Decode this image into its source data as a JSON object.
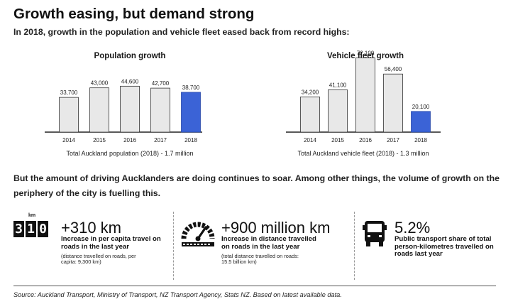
{
  "header": {
    "title": "Growth easing, but demand strong",
    "subtitle": "In 2018, growth in the population and vehicle fleet eased back from record highs:"
  },
  "chart_data": [
    {
      "type": "bar",
      "title": "Population growth",
      "categories": [
        "2014",
        "2015",
        "2016",
        "2017",
        "2018"
      ],
      "values": [
        33700,
        43000,
        44600,
        42700,
        38700
      ],
      "value_labels": [
        "33,700",
        "43,000",
        "44,600",
        "42,700",
        "38,700"
      ],
      "highlight_index": 4,
      "ylim": [
        0,
        80000
      ],
      "caption": "Total Auckland population (2018) - 1.7 million",
      "colors": {
        "bar": "#e8e8e8",
        "highlight": "#3b63d6"
      }
    },
    {
      "type": "bar",
      "title": "Vehicle fleet growth",
      "categories": [
        "2014",
        "2015",
        "2016",
        "2017",
        "2018"
      ],
      "values": [
        34200,
        41100,
        72100,
        56400,
        20100
      ],
      "value_labels": [
        "34,200",
        "41,100",
        "72,100",
        "56,400",
        "20,100"
      ],
      "highlight_index": 4,
      "ylim": [
        0,
        80000
      ],
      "caption": "Total Auckland vehicle fleet (2018) - 1.3 million",
      "colors": {
        "bar": "#e8e8e8",
        "highlight": "#3b63d6"
      }
    }
  ],
  "paragraph": "But the amount of driving Aucklanders are doing continues to soar. Among other things, the volume of growth on the periphery of the city is fuelling this.",
  "stats": [
    {
      "icon": "odometer-icon",
      "icon_label": "km",
      "icon_digits": [
        "3",
        "1",
        "0"
      ],
      "big": "+310 km",
      "bold": "Increase in per capita travel on roads in the last year",
      "small": "(distance travelled on roads, per capita: 9,300 km)"
    },
    {
      "icon": "speedometer-icon",
      "big": "+900 million km",
      "bold": "Increase in distance travelled on roads in the last year",
      "small": "(total distance travelled on roads: 15.5 billion km)"
    },
    {
      "icon": "bus-icon",
      "big": "5.2%",
      "bold": "Public transport share of total person-kilometres travelled on roads last year",
      "small": ""
    }
  ],
  "footer": {
    "source": "Source: Auckland Transport, Ministry of Transport, NZ Transport Agency, Stats NZ. Based on latest available data."
  }
}
